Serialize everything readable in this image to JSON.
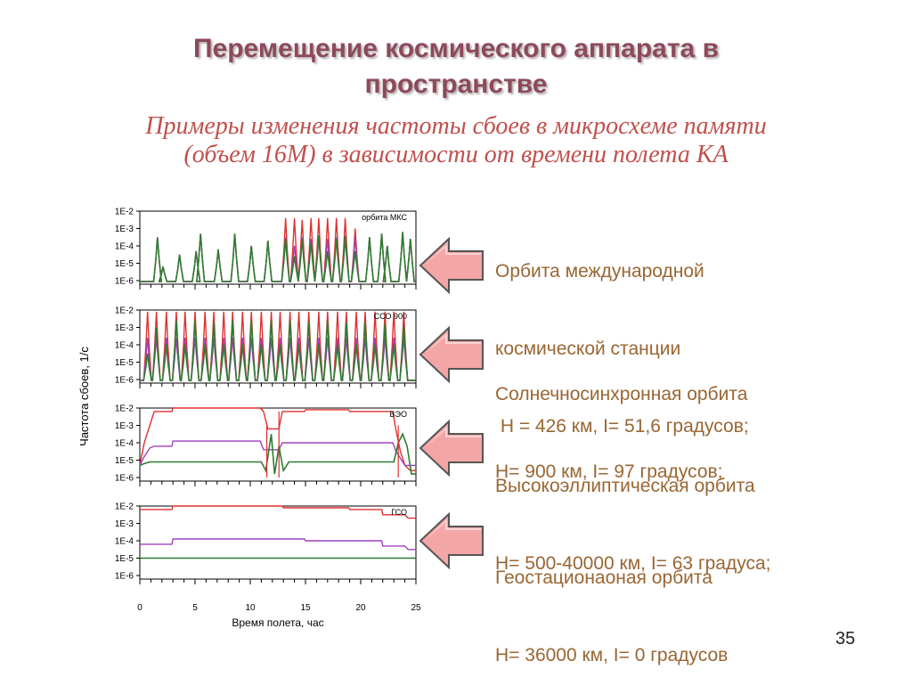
{
  "slide": {
    "title_line1": "Перемещение космического аппарата в",
    "title_line2": "пространстве",
    "subtitle_line1": "Примеры изменения частоты сбоев в микросхеме памяти",
    "subtitle_line2": "(объем 16М) в зависимости от времени полета КА",
    "page_number": "35",
    "colors": {
      "title": "#8c4a5b",
      "subtitle": "#c0504d",
      "description": "#996633",
      "arrow_fill": "#f4a6a6",
      "arrow_stroke": "#555555"
    }
  },
  "descriptions": [
    {
      "line1": "Орбита международной",
      "line2": "космической станции",
      "line3": " H = 426 км, I= 51,6 градусов;"
    },
    {
      "line1": "Солнечносинхронная орбита",
      "line2": "H= 900 км, I= 97 градусов;"
    },
    {
      "line1": "Высокоэллиптическая орбита",
      "line2": "H= 500-40000 км, I= 63 градуса;"
    },
    {
      "line1": "Геостационаоная орбита",
      "line2": "H= 36000 км, I= 0 градусов"
    }
  ],
  "chart_data": {
    "type": "line",
    "ylabel": "Частота сбоев, 1/с",
    "xlabel": "Время полета, час",
    "x_ticks": [
      "0",
      "5",
      "10",
      "15",
      "20",
      "25"
    ],
    "xlim": [
      0,
      25
    ],
    "y_ticks": [
      "1E-2",
      "1E-3",
      "1E-4",
      "1E-5",
      "1E-6"
    ],
    "y_log_range": [
      -6,
      -2
    ],
    "series_colors": [
      "#e03030",
      "#a040c0",
      "#2e7d32"
    ],
    "panels": [
      {
        "label": "орбита МКС",
        "peaks": [
          {
            "x": 1.6,
            "red": -3.5,
            "purple": -3.5,
            "green": -3.5
          },
          {
            "x": 2.1,
            "red": -5.2,
            "purple": -5.2,
            "green": -5.2
          },
          {
            "x": 3.6,
            "red": -4.5,
            "purple": -4.5,
            "green": -4.5
          },
          {
            "x": 5.1,
            "red": -4.3,
            "purple": -4.3,
            "green": -4.3
          },
          {
            "x": 5.5,
            "red": -3.3,
            "purple": -3.3,
            "green": -3.3
          },
          {
            "x": 7.1,
            "red": -4.2,
            "purple": -4.2,
            "green": -4.2
          },
          {
            "x": 8.6,
            "red": -3.3,
            "purple": -3.3,
            "green": -3.3
          },
          {
            "x": 10.1,
            "red": -4.0,
            "purple": -4.0,
            "green": -4.0
          },
          {
            "x": 11.6,
            "red": -3.7,
            "purple": -3.7,
            "green": -3.7
          },
          {
            "x": 13.2,
            "red": -2.4,
            "purple": -3.5,
            "green": -3.6
          },
          {
            "x": 14.0,
            "red": -2.4,
            "purple": -4.0,
            "green": -4.6
          },
          {
            "x": 14.7,
            "red": -2.5,
            "purple": -3.5,
            "green": -3.6
          },
          {
            "x": 15.5,
            "red": -2.4,
            "purple": -3.6,
            "green": -3.8
          },
          {
            "x": 16.2,
            "red": -2.4,
            "purple": -3.5,
            "green": -3.4
          },
          {
            "x": 17.0,
            "red": -2.4,
            "purple": -3.6,
            "green": -4.3
          },
          {
            "x": 17.8,
            "red": -2.4,
            "purple": -3.5,
            "green": -3.6
          },
          {
            "x": 18.6,
            "red": -2.4,
            "purple": -3.6,
            "green": -3.4
          },
          {
            "x": 19.5,
            "red": -3.0,
            "purple": -3.5,
            "green": -4.3
          },
          {
            "x": 20.8,
            "red": -3.5,
            "purple": -3.5,
            "green": -3.5
          },
          {
            "x": 21.9,
            "red": -3.3,
            "purple": -3.3,
            "green": -3.3
          },
          {
            "x": 22.4,
            "red": -4.0,
            "purple": -4.0,
            "green": -4.0
          },
          {
            "x": 23.8,
            "red": -3.2,
            "purple": -3.2,
            "green": -3.2
          },
          {
            "x": 24.5,
            "red": -3.6,
            "purple": -3.6,
            "green": -3.6
          }
        ]
      },
      {
        "label": "ССО 900",
        "peaks": [
          {
            "x": 0.7,
            "red": -2.1,
            "purple": -3.6,
            "green": -4.5
          },
          {
            "x": 1.5,
            "red": -2.1,
            "purple": -3.6,
            "green": -3.0
          },
          {
            "x": 2.4,
            "red": -2.1,
            "purple": -3.6,
            "green": -4.0
          },
          {
            "x": 3.3,
            "red": -2.1,
            "purple": -3.6,
            "green": -2.6
          },
          {
            "x": 4.1,
            "red": -2.1,
            "purple": -3.6,
            "green": -4.0
          },
          {
            "x": 5.0,
            "red": -2.1,
            "purple": -3.6,
            "green": -2.6
          },
          {
            "x": 5.9,
            "red": -2.1,
            "purple": -3.6,
            "green": -4.0
          },
          {
            "x": 6.7,
            "red": -2.1,
            "purple": -3.6,
            "green": -2.7
          },
          {
            "x": 7.6,
            "red": -2.1,
            "purple": -3.6,
            "green": -4.0
          },
          {
            "x": 8.4,
            "red": -2.1,
            "purple": -3.6,
            "green": -2.6
          },
          {
            "x": 9.3,
            "red": -2.1,
            "purple": -3.6,
            "green": -4.0
          },
          {
            "x": 10.1,
            "red": -2.1,
            "purple": -3.6,
            "green": -2.6
          },
          {
            "x": 11.0,
            "red": -2.1,
            "purple": -3.6,
            "green": -4.0
          },
          {
            "x": 11.9,
            "red": -2.1,
            "purple": -3.6,
            "green": -2.6
          },
          {
            "x": 12.7,
            "red": -2.1,
            "purple": -3.6,
            "green": -4.0
          },
          {
            "x": 13.6,
            "red": -2.1,
            "purple": -3.6,
            "green": -2.6
          },
          {
            "x": 14.4,
            "red": -2.1,
            "purple": -3.6,
            "green": -4.0
          },
          {
            "x": 15.3,
            "red": -2.1,
            "purple": -3.6,
            "green": -2.7
          },
          {
            "x": 16.2,
            "red": -2.1,
            "purple": -3.6,
            "green": -4.0
          },
          {
            "x": 17.0,
            "red": -2.1,
            "purple": -3.6,
            "green": -2.6
          },
          {
            "x": 17.9,
            "red": -2.1,
            "purple": -3.6,
            "green": -4.0
          },
          {
            "x": 18.7,
            "red": -2.1,
            "purple": -3.6,
            "green": -2.7
          },
          {
            "x": 19.6,
            "red": -2.1,
            "purple": -3.6,
            "green": -4.0
          },
          {
            "x": 20.4,
            "red": -2.1,
            "purple": -3.6,
            "green": -2.7
          },
          {
            "x": 21.3,
            "red": -2.1,
            "purple": -3.6,
            "green": -4.0
          },
          {
            "x": 22.2,
            "red": -2.1,
            "purple": -3.6,
            "green": -2.8
          },
          {
            "x": 23.0,
            "red": -2.1,
            "purple": -3.6,
            "green": -4.0
          },
          {
            "x": 23.9,
            "red": -2.1,
            "purple": -3.6,
            "green": -2.9
          }
        ]
      },
      {
        "label": "ВЭО",
        "segments": {
          "red": [
            [
              0,
              -5.3
            ],
            [
              0.4,
              -4.0
            ],
            [
              0.9,
              -3.0
            ],
            [
              1.3,
              -2.2
            ],
            [
              2.9,
              -2.2
            ],
            [
              3.0,
              -2.0
            ],
            [
              10.9,
              -2.0
            ],
            [
              11.2,
              -2.2
            ],
            [
              11.6,
              -3.2
            ],
            [
              12.6,
              -3.2
            ],
            [
              12.9,
              -2.2
            ],
            [
              14.9,
              -2.2
            ],
            [
              15.0,
              -2.1
            ],
            [
              18.9,
              -2.1
            ],
            [
              19.0,
              -2.2
            ],
            [
              22.9,
              -2.2
            ],
            [
              23.2,
              -3.3
            ],
            [
              23.6,
              -4.5
            ],
            [
              24.0,
              -5.3
            ],
            [
              24.5,
              -5.6
            ],
            [
              25,
              -5.6
            ]
          ],
          "purple": [
            [
              0,
              -5.3
            ],
            [
              0.4,
              -4.8
            ],
            [
              0.9,
              -4.3
            ],
            [
              1.3,
              -4.2
            ],
            [
              2.9,
              -4.2
            ],
            [
              3.0,
              -3.9
            ],
            [
              10.9,
              -3.9
            ],
            [
              11.2,
              -4.4
            ],
            [
              12.6,
              -4.4
            ],
            [
              12.9,
              -4.0
            ],
            [
              14.9,
              -4.0
            ],
            [
              15.0,
              -4.0
            ],
            [
              22.9,
              -4.0
            ],
            [
              23.2,
              -4.5
            ],
            [
              23.6,
              -4.9
            ],
            [
              24.0,
              -5.3
            ],
            [
              25,
              -5.3
            ]
          ],
          "green": [
            [
              0,
              -5.3
            ],
            [
              0.4,
              -5.2
            ],
            [
              0.9,
              -5.1
            ],
            [
              11.0,
              -5.1
            ],
            [
              11.4,
              -5.6
            ],
            [
              11.9,
              -3.5
            ],
            [
              12.2,
              -5.8
            ],
            [
              12.6,
              -4.2
            ],
            [
              13.0,
              -5.6
            ],
            [
              13.5,
              -5.1
            ],
            [
              23.0,
              -5.1
            ],
            [
              23.4,
              -4.0
            ],
            [
              23.8,
              -3.5
            ],
            [
              24.2,
              -4.2
            ],
            [
              24.6,
              -5.8
            ],
            [
              25,
              -5.8
            ]
          ],
          "extra_red_spikes": [
            {
              "x": 11.5,
              "y": -3.0
            },
            {
              "x": 12.6,
              "y": -2.2
            },
            {
              "x": 23.4,
              "y": -3.0
            }
          ]
        }
      },
      {
        "label": "ГСО",
        "segments": {
          "red": [
            [
              0,
              -2.2
            ],
            [
              2.9,
              -2.2
            ],
            [
              3.0,
              -2.0
            ],
            [
              12.9,
              -2.0
            ],
            [
              13.0,
              -2.1
            ],
            [
              18.9,
              -2.1
            ],
            [
              19.0,
              -2.2
            ],
            [
              21.9,
              -2.2
            ],
            [
              22.0,
              -2.5
            ],
            [
              24.0,
              -2.5
            ],
            [
              24.3,
              -2.7
            ],
            [
              25,
              -2.7
            ]
          ],
          "purple": [
            [
              0,
              -4.2
            ],
            [
              2.9,
              -4.2
            ],
            [
              3.0,
              -3.9
            ],
            [
              14.9,
              -3.9
            ],
            [
              15.0,
              -4.0
            ],
            [
              21.9,
              -4.0
            ],
            [
              22.0,
              -4.3
            ],
            [
              24.0,
              -4.3
            ],
            [
              24.3,
              -4.5
            ],
            [
              25,
              -4.5
            ]
          ],
          "green": [
            [
              0,
              -5.0
            ],
            [
              25,
              -5.0
            ]
          ]
        }
      }
    ]
  }
}
